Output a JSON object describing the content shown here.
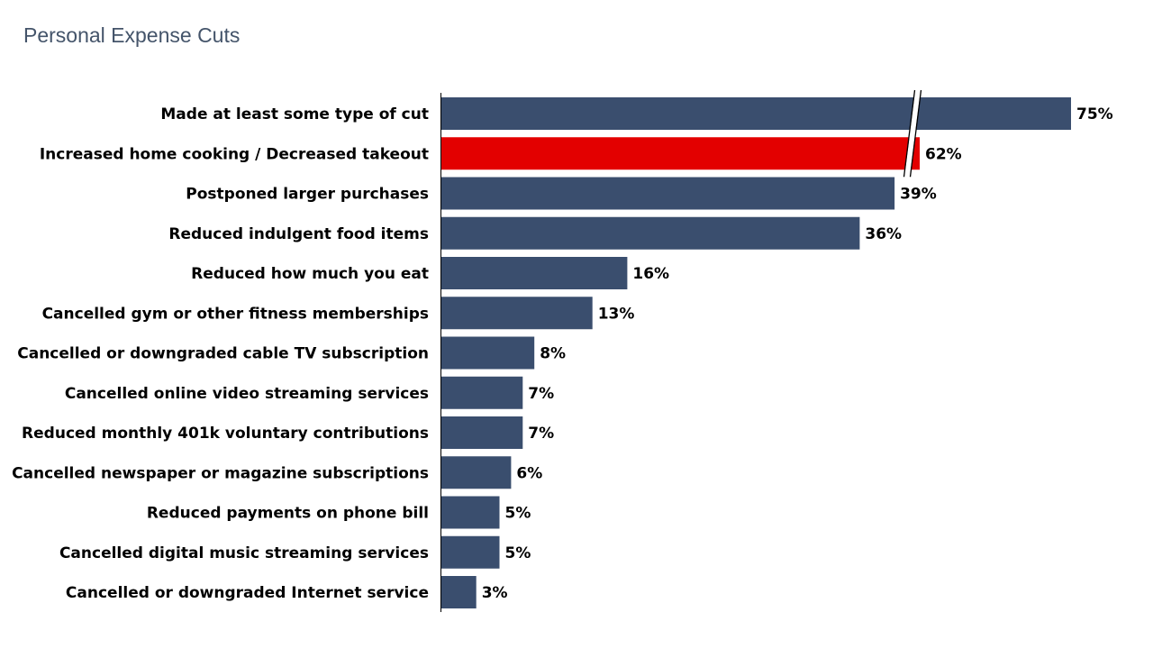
{
  "page": {
    "title": "Personal Expense Cuts"
  },
  "colors": {
    "bar": "#3a4e6e",
    "highlight": "#e30000",
    "axis": "#000000"
  },
  "chart_data": {
    "type": "bar",
    "orientation": "horizontal",
    "title": "Personal Expense Cuts",
    "xlabel": "",
    "ylabel": "",
    "grid": false,
    "axis_break": true,
    "highlight_index": 1,
    "categories": [
      "Made at least some type of cut",
      "Increased home cooking / Decreased takeout",
      "Postponed larger purchases",
      "Reduced indulgent food items",
      "Reduced how much you eat",
      "Cancelled gym or other fitness memberships",
      "Cancelled or downgraded cable TV subscription",
      "Cancelled online video streaming services",
      "Reduced monthly 401k voluntary contributions",
      "Cancelled newspaper or magazine subscriptions",
      "Reduced payments on phone bill",
      "Cancelled digital music streaming services",
      "Cancelled or downgraded Internet service"
    ],
    "values": [
      75,
      62,
      39,
      36,
      16,
      13,
      8,
      7,
      7,
      6,
      5,
      5,
      3
    ],
    "labels": [
      "75%",
      "62%",
      "39%",
      "36%",
      "16%",
      "13%",
      "8%",
      "7%",
      "7%",
      "6%",
      "5%",
      "5%",
      "3%"
    ]
  }
}
